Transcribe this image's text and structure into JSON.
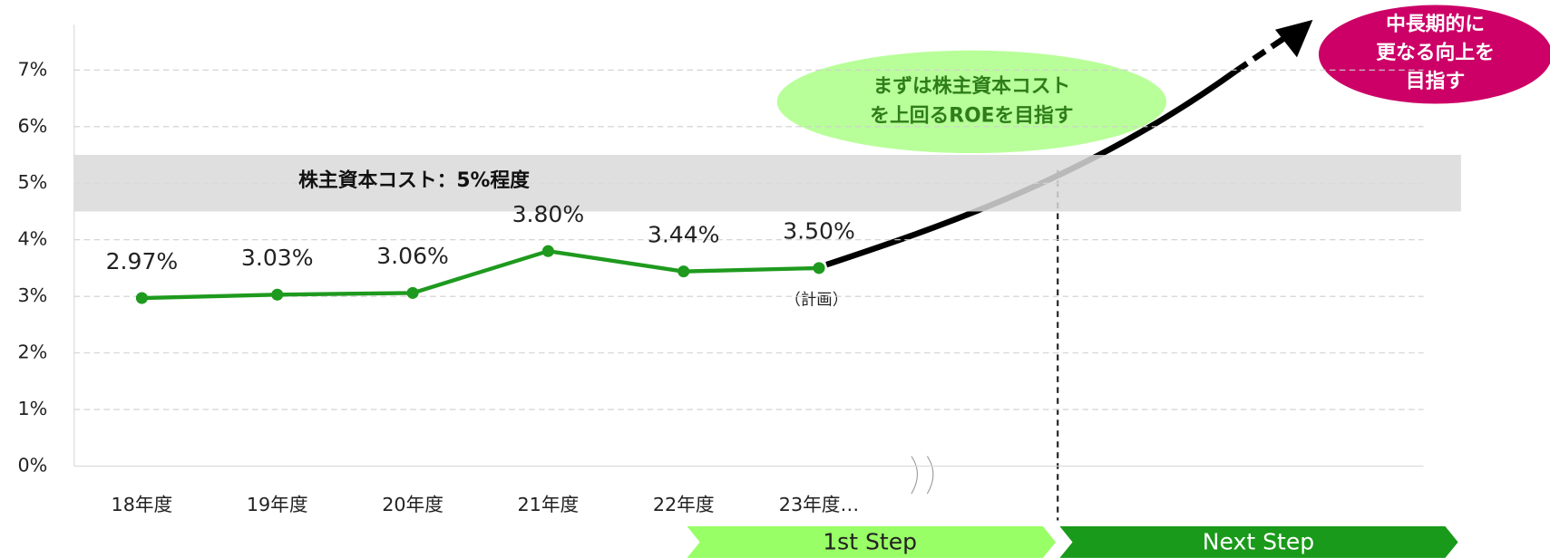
{
  "chart_data": {
    "type": "line",
    "categories": [
      "18年度",
      "19年度",
      "20年度",
      "21年度",
      "22年度",
      "23年度…"
    ],
    "series": [
      {
        "name": "ROE",
        "color": "#1e9a1e",
        "values": [
          2.97,
          3.03,
          3.06,
          3.8,
          3.44,
          3.5
        ],
        "value_labels": [
          "2.97%",
          "3.03%",
          "3.06%",
          "3.80%",
          "3.44%",
          "3.50%"
        ]
      }
    ],
    "ylim": [
      0,
      7.8
    ],
    "yticks": [
      {
        "value": 0,
        "label": "0%"
      },
      {
        "value": 1,
        "label": "1%"
      },
      {
        "value": 2,
        "label": "2%"
      },
      {
        "value": 3,
        "label": "3%"
      },
      {
        "value": 4,
        "label": "4%"
      },
      {
        "value": 5,
        "label": "5%"
      },
      {
        "value": 6,
        "label": "6%"
      },
      {
        "value": 7,
        "label": "7%"
      }
    ],
    "grid": true,
    "band": {
      "range": [
        4.5,
        5.5
      ],
      "label": "株主資本コスト：5%程度"
    },
    "annotations": {
      "plan": "（計画）",
      "first_goal": [
        "まずは株主資本コスト",
        "を上回るROEを目指す"
      ],
      "long_goal": [
        "中長期的に",
        "更なる向上を",
        "目指す"
      ],
      "step1": "1st Step",
      "step2": "Next Step"
    }
  }
}
